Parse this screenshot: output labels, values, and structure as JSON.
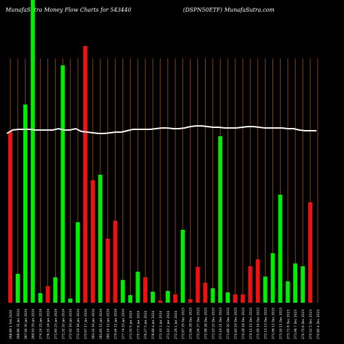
{
  "header": {
    "left_text": "MunafaSutra  Money Flow  Charts for 543440",
    "right_text": "(DSPN50ETF) MunafaSutra.com"
  },
  "colors": {
    "background": "#000000",
    "gridline": "#8b4513",
    "up_bar": "#00ee00",
    "down_bar": "#ee1111",
    "line": "#ffffff",
    "text": "#ffffff"
  },
  "chart_data": {
    "type": "bar",
    "title": "MunafaSutra  Money Flow  Charts for 543440",
    "subtitle": "(DSPN50ETF) MunafaSutra.com",
    "categories": [
      "268.89 1 Feb 2024",
      "268.86 31 Jan 2024",
      "267.94 30 Jan 2024",
      "269.93 29 Jan 2024",
      "274.24 25 Jan 2024",
      "276.31 24 Jan 2024",
      "271.60 23 Jan 2024",
      "271.32 20 Jan 2024",
      "272.92 19 Jan 2024",
      "272.19 18 Jan 2024",
      "275.97 17 Jan 2024",
      "281.24 16 Jan 2024",
      "281.85 15 Jan 2024",
      "280.14 12 Jan 2024",
      "279.44 11 Jan 2024",
      "277.74 10 Jan 2024",
      "271.55 9 Jan 2024",
      "270.77 8 Jan 2024",
      "276.27 5 Jan 2024",
      "276.68 4 Jan 2024",
      "272.33 3 Jan 2024",
      "271.10 2 Jan 2024",
      "272.26 1 Jan 2024",
      "272.87 29 Dec 2023",
      "272.66 28 Dec 2023",
      "272.04 27 Dec 2023",
      "272.98 26 Dec 2023",
      "271.10 22 Dec 2023",
      "271.19 21 Dec 2023",
      "271.86 20 Dec 2023",
      "274.40 19 Dec 2023",
      "274.28 18 Dec 2023",
      "274.11 15 Dec 2023",
      "272.99 14 Dec 2023",
      "272.13 13 Dec 2023",
      "271.96 12 Dec 2023",
      "273.50 11 Dec 2023",
      "273.71 8 Dec 2023",
      "271.96 7 Dec 2023",
      "270.75 6 Dec 2023",
      "270.52 5 Dec 2023",
      "270.80 4 Dec 2023"
    ],
    "series": [
      {
        "values": [
          248,
          42,
          288,
          440,
          14,
          24,
          37,
          345,
          6,
          117,
          373,
          178,
          186,
          93,
          119,
          33,
          11,
          45,
          37,
          16,
          3,
          17,
          12,
          106,
          5,
          52,
          29,
          21,
          242,
          15,
          12,
          12,
          53,
          63,
          38,
          72,
          157,
          31,
          57,
          53,
          146,
          0
        ],
        "directions": [
          "down",
          "up",
          "up",
          "up",
          "up",
          "down",
          "up",
          "up",
          "up",
          "up",
          "down",
          "down",
          "up",
          "down",
          "down",
          "up",
          "up",
          "up",
          "down",
          "up",
          "down",
          "up",
          "down",
          "up",
          "down",
          "down",
          "down",
          "up",
          "up",
          "up",
          "down",
          "down",
          "down",
          "down",
          "up",
          "up",
          "up",
          "up",
          "up",
          "up",
          "down",
          "up"
        ]
      }
    ],
    "line_values": [
      246,
      251,
      252,
      252,
      252,
      251,
      251,
      251,
      251,
      253,
      251,
      251,
      253,
      249,
      248,
      247,
      246,
      246,
      247,
      248,
      248,
      250,
      252,
      252,
      252,
      252,
      253,
      254,
      254,
      253,
      253,
      254,
      256,
      257,
      257,
      256,
      255,
      255,
      254,
      254,
      254,
      255,
      256,
      256,
      255,
      254,
      254,
      254,
      254,
      253,
      253,
      251,
      250,
      250,
      250
    ],
    "ylim": [
      0,
      440
    ],
    "xlabel": "",
    "ylabel": "",
    "grid": true
  }
}
